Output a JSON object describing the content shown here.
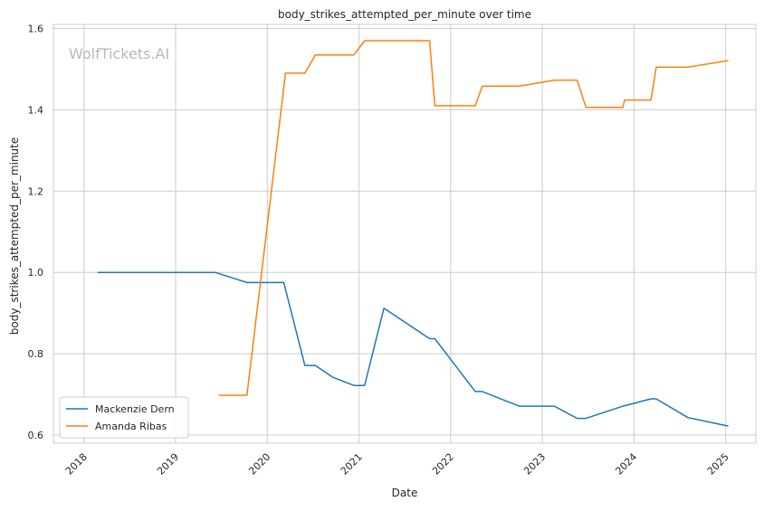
{
  "chart_data": {
    "type": "line",
    "title": "body_strikes_attempted_per_minute over time",
    "xlabel": "Date",
    "ylabel": "body_strikes_attempted_per_minute",
    "watermark": "WolfTickets.AI",
    "xlim": [
      "2017-09-01",
      "2025-05-01"
    ],
    "ylim": [
      0.58,
      1.61
    ],
    "x_ticks": [
      "2018",
      "2019",
      "2020",
      "2021",
      "2022",
      "2023",
      "2024",
      "2025"
    ],
    "y_ticks": [
      "0.6",
      "0.8",
      "1.0",
      "1.2",
      "1.4",
      "1.6"
    ],
    "grid": true,
    "legend": "lower-left",
    "series": [
      {
        "name": "Mackenzie Dern",
        "color": "#1f77b4",
        "points": [
          [
            "2018-02-24",
            1.0
          ],
          [
            "2019-06-08",
            1.0
          ],
          [
            "2019-10-12",
            0.975
          ],
          [
            "2020-03-07",
            0.975
          ],
          [
            "2020-05-30",
            0.771
          ],
          [
            "2020-07-11",
            0.771
          ],
          [
            "2020-09-19",
            0.742
          ],
          [
            "2020-12-12",
            0.722
          ],
          [
            "2021-01-23",
            0.722
          ],
          [
            "2021-04-10",
            0.912
          ],
          [
            "2021-10-09",
            0.837
          ],
          [
            "2021-10-30",
            0.837
          ],
          [
            "2022-04-09",
            0.707
          ],
          [
            "2022-05-07",
            0.707
          ],
          [
            "2022-10-01",
            0.671
          ],
          [
            "2023-02-18",
            0.671
          ],
          [
            "2023-05-20",
            0.641
          ],
          [
            "2023-06-24",
            0.641
          ],
          [
            "2023-11-18",
            0.671
          ],
          [
            "2024-03-09",
            0.689
          ],
          [
            "2024-03-30",
            0.689
          ],
          [
            "2024-08-03",
            0.643
          ],
          [
            "2025-01-11",
            0.622
          ]
        ]
      },
      {
        "name": "Amanda Ribas",
        "color": "#ff7f0e",
        "points": [
          [
            "2019-06-22",
            0.698
          ],
          [
            "2019-10-12",
            0.698
          ],
          [
            "2020-03-14",
            1.49
          ],
          [
            "2020-05-30",
            1.49
          ],
          [
            "2020-07-11",
            1.535
          ],
          [
            "2020-12-12",
            1.535
          ],
          [
            "2021-01-23",
            1.57
          ],
          [
            "2021-10-09",
            1.57
          ],
          [
            "2021-10-30",
            1.41
          ],
          [
            "2022-04-09",
            1.41
          ],
          [
            "2022-05-07",
            1.458
          ],
          [
            "2022-10-01",
            1.458
          ],
          [
            "2023-02-18",
            1.473
          ],
          [
            "2023-05-20",
            1.473
          ],
          [
            "2023-06-24",
            1.406
          ],
          [
            "2023-11-18",
            1.406
          ],
          [
            "2023-11-25",
            1.424
          ],
          [
            "2024-03-09",
            1.424
          ],
          [
            "2024-03-30",
            1.505
          ],
          [
            "2024-08-03",
            1.505
          ],
          [
            "2025-01-11",
            1.521
          ]
        ]
      }
    ]
  }
}
